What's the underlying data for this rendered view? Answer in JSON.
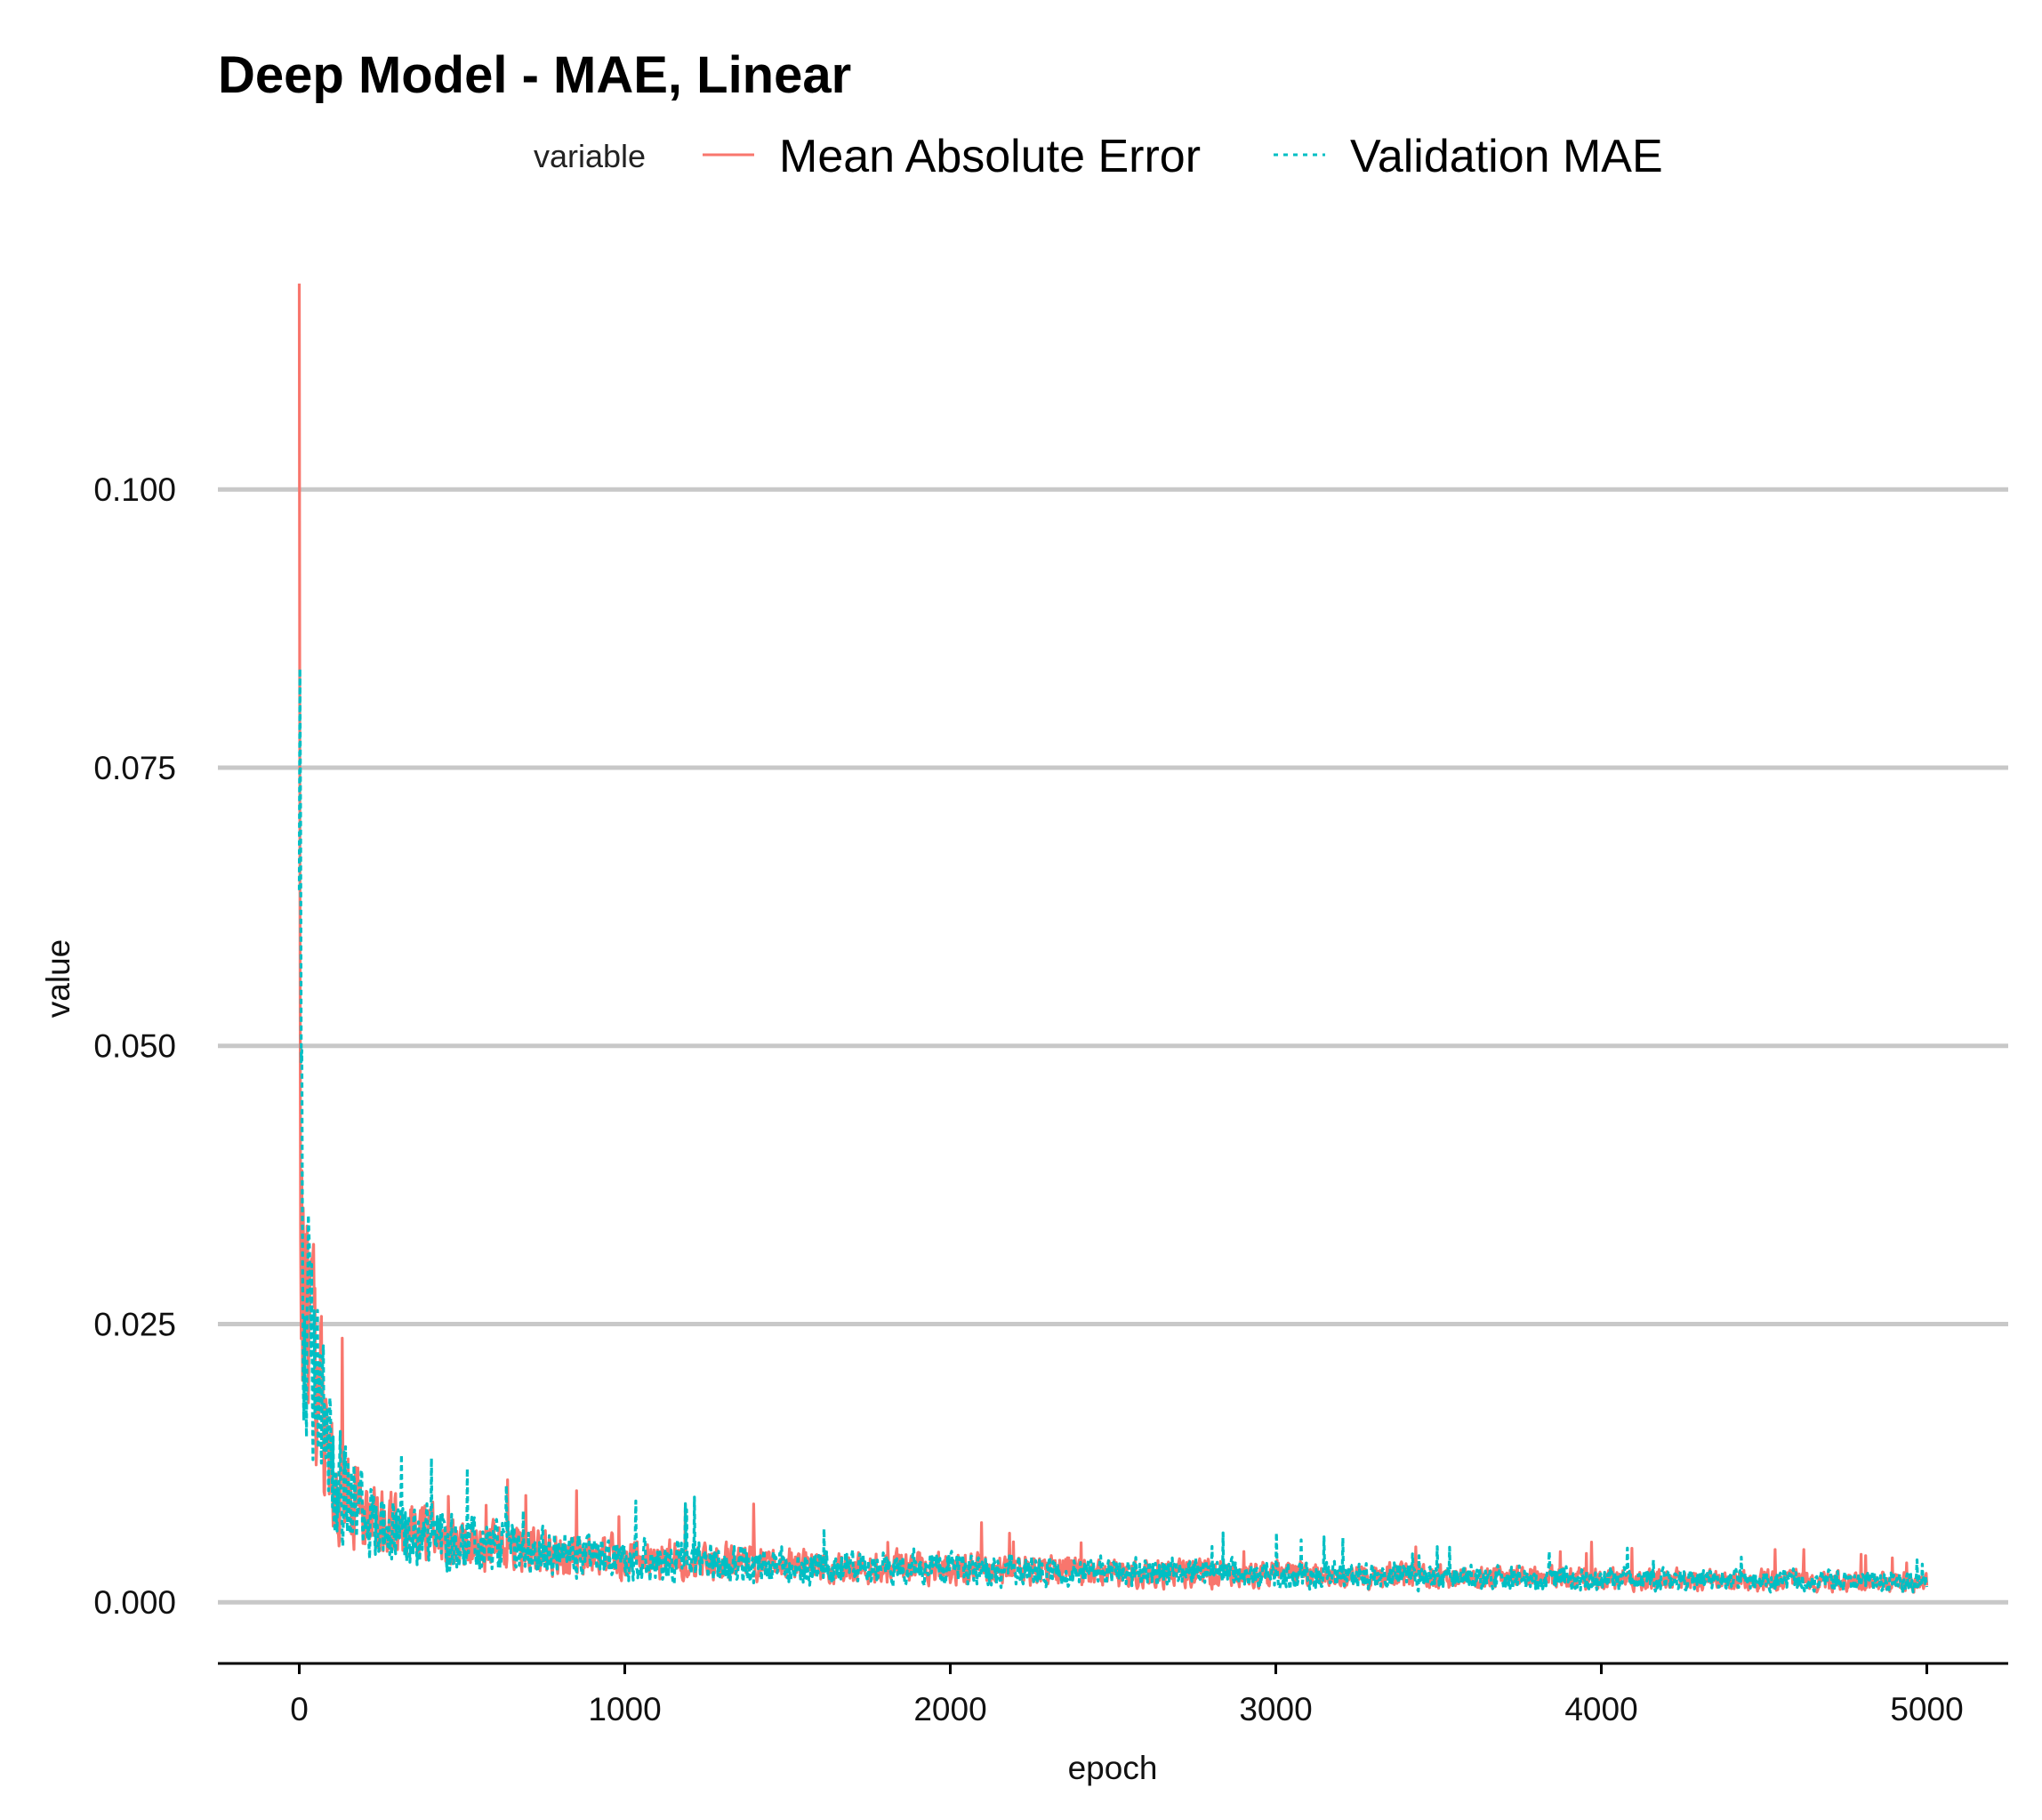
{
  "chart_data": {
    "type": "line",
    "title": "Deep Model - MAE, Linear",
    "xlabel": "epoch",
    "ylabel": "value",
    "xlim": [
      -250,
      5250
    ],
    "ylim": [
      -0.0055,
      0.12
    ],
    "x_ticks": [
      0,
      1000,
      2000,
      3000,
      4000,
      5000
    ],
    "x_tick_labels": [
      "0",
      "1000",
      "2000",
      "3000",
      "4000",
      "5000"
    ],
    "y_ticks": [
      0.0,
      0.025,
      0.05,
      0.075,
      0.1
    ],
    "y_tick_labels": [
      "0.000",
      "0.025",
      "0.050",
      "0.075",
      "0.100"
    ],
    "grid": "horizontal major",
    "legend": {
      "title": "variable",
      "position": "top",
      "entries": [
        "Mean Absolute Error",
        "Validation MAE"
      ]
    },
    "series": [
      {
        "name": "Mean Absolute Error",
        "color": "#F8766D",
        "linetype": "solid",
        "x": [
          0,
          5,
          10,
          20,
          30,
          40,
          50,
          75,
          100,
          150,
          200,
          300,
          400,
          500,
          750,
          1000,
          1250,
          1500,
          2000,
          2500,
          3000,
          3500,
          4000,
          4500,
          5000
        ],
        "values": [
          0.1185,
          0.047,
          0.032,
          0.026,
          0.024,
          0.022,
          0.02,
          0.015,
          0.012,
          0.01,
          0.008,
          0.0065,
          0.0058,
          0.0052,
          0.0045,
          0.004,
          0.0036,
          0.0033,
          0.003,
          0.0027,
          0.0025,
          0.0023,
          0.0021,
          0.002,
          0.0018
        ]
      },
      {
        "name": "Validation MAE",
        "color": "#00BFC4",
        "linetype": "dotted",
        "x": [
          0,
          5,
          10,
          20,
          30,
          40,
          50,
          75,
          100,
          150,
          200,
          300,
          400,
          500,
          750,
          1000,
          1250,
          1500,
          2000,
          2500,
          3000,
          3500,
          4000,
          4500,
          5000
        ],
        "values": [
          0.064,
          0.045,
          0.034,
          0.026,
          0.024,
          0.022,
          0.02,
          0.015,
          0.012,
          0.01,
          0.008,
          0.0065,
          0.0058,
          0.0052,
          0.0045,
          0.004,
          0.0036,
          0.0033,
          0.003,
          0.0027,
          0.0025,
          0.0023,
          0.0021,
          0.002,
          0.0018
        ]
      }
    ]
  }
}
